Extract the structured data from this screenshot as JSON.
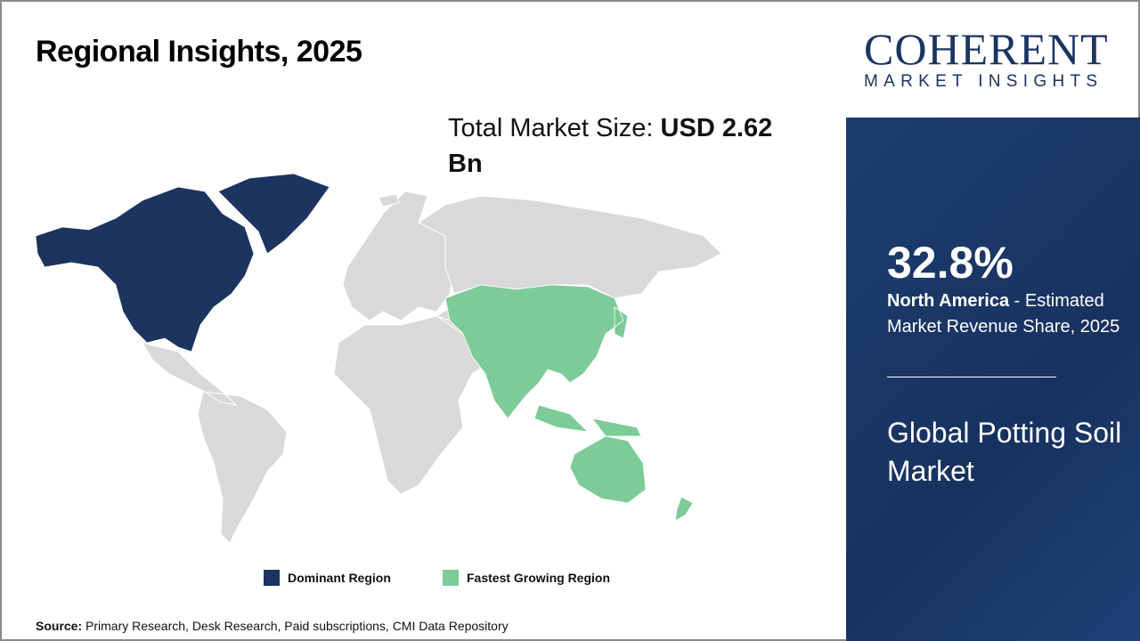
{
  "title": "Regional Insights, 2025",
  "total_market": {
    "label": "Total Market Size: ",
    "value": "USD 2.62 Bn"
  },
  "legend": [
    {
      "label": "Dominant Region",
      "color": "#1b3460"
    },
    {
      "label": "Fastest Growing Region",
      "color": "#7dcb98"
    }
  ],
  "source": {
    "label": "Source:",
    "text": " Primary Research, Desk Research, Paid subscriptions, CMI Data Repository"
  },
  "logo": {
    "main": "COHERENT",
    "sub": "MARKET INSIGHTS"
  },
  "highlight": {
    "percent": "32.8%",
    "region": "North America",
    "text": " - Estimated Market Revenue Share, 2025"
  },
  "market_name": "Global Potting Soil Market",
  "map": {
    "dominant_region": "North America",
    "fastest_growing_region": "Asia Pacific",
    "colors": {
      "dominant": "#1b3460",
      "fastest": "#7dcb98",
      "other": "#d9d9d9"
    }
  }
}
